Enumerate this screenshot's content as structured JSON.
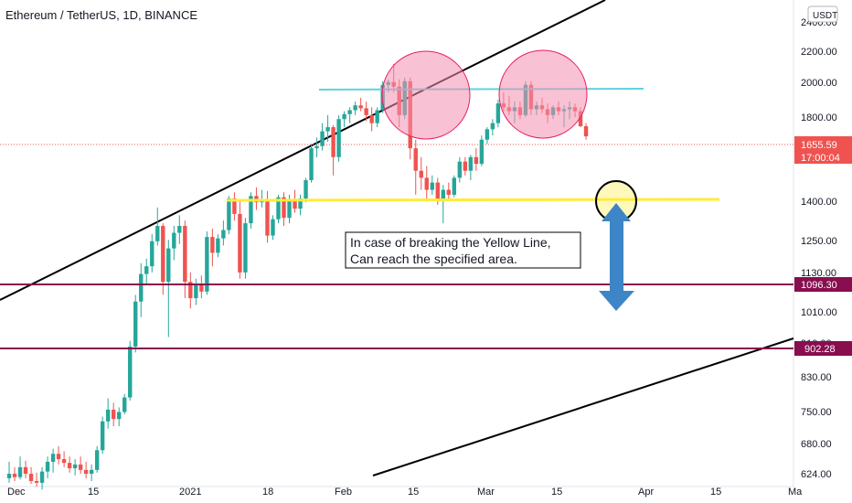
{
  "header": {
    "title": "Ethereum / TetherUS, 1D, BINANCE"
  },
  "currency_button": "USDT",
  "annotation": {
    "line1": "In case of breaking the Yellow Line,",
    "line2": "Can reach the specified area."
  },
  "last_price": {
    "value": "1655.59",
    "countdown": "17:00:04"
  },
  "chart_data": {
    "type": "candlestick",
    "title": "Ethereum / TetherUS, 1D, BINANCE",
    "y_scale": "log",
    "ylim": [
      615,
      2450
    ],
    "y_ticks": [
      "624.00",
      "680.00",
      "750.00",
      "830.00",
      "910.00",
      "1010.00",
      "1130.00",
      "1250.00",
      "1400.00",
      "1800.00",
      "2000.00",
      "2200.00",
      "2400.00"
    ],
    "x_ticks": [
      "Dec",
      "15",
      "2021",
      "18",
      "Feb",
      "15",
      "Mar",
      "15",
      "Apr",
      "15",
      "Ma"
    ],
    "horizontal_levels": [
      {
        "value": 1096.3,
        "label": "1096.30",
        "color": "#880e4f"
      },
      {
        "value": 902.28,
        "label": "902.28",
        "color": "#880e4f"
      },
      {
        "value": 1410,
        "label": "",
        "color": "#ffeb3b"
      },
      {
        "value": 1960,
        "label": "",
        "color": "#5fd3dd"
      }
    ],
    "colors": {
      "up": "#26a69a",
      "down": "#ef5350"
    },
    "candles": [
      {
        "o": 620,
        "h": 650,
        "l": 612,
        "c": 628
      },
      {
        "o": 628,
        "h": 640,
        "l": 615,
        "c": 622
      },
      {
        "o": 622,
        "h": 660,
        "l": 618,
        "c": 640
      },
      {
        "o": 640,
        "h": 652,
        "l": 620,
        "c": 628
      },
      {
        "o": 628,
        "h": 640,
        "l": 610,
        "c": 615
      },
      {
        "o": 615,
        "h": 630,
        "l": 605,
        "c": 612
      },
      {
        "o": 612,
        "h": 640,
        "l": 600,
        "c": 632
      },
      {
        "o": 632,
        "h": 660,
        "l": 620,
        "c": 650
      },
      {
        "o": 650,
        "h": 675,
        "l": 630,
        "c": 665
      },
      {
        "o": 665,
        "h": 680,
        "l": 645,
        "c": 655
      },
      {
        "o": 655,
        "h": 670,
        "l": 640,
        "c": 648
      },
      {
        "o": 648,
        "h": 660,
        "l": 630,
        "c": 638
      },
      {
        "o": 638,
        "h": 655,
        "l": 625,
        "c": 645
      },
      {
        "o": 645,
        "h": 660,
        "l": 628,
        "c": 635
      },
      {
        "o": 635,
        "h": 650,
        "l": 620,
        "c": 628
      },
      {
        "o": 628,
        "h": 645,
        "l": 615,
        "c": 635
      },
      {
        "o": 635,
        "h": 680,
        "l": 630,
        "c": 672
      },
      {
        "o": 672,
        "h": 740,
        "l": 665,
        "c": 730
      },
      {
        "o": 730,
        "h": 780,
        "l": 715,
        "c": 755
      },
      {
        "o": 755,
        "h": 770,
        "l": 720,
        "c": 735
      },
      {
        "o": 735,
        "h": 760,
        "l": 720,
        "c": 750
      },
      {
        "o": 750,
        "h": 790,
        "l": 745,
        "c": 782
      },
      {
        "o": 782,
        "h": 920,
        "l": 775,
        "c": 905
      },
      {
        "o": 905,
        "h": 1050,
        "l": 890,
        "c": 1030
      },
      {
        "o": 1030,
        "h": 1150,
        "l": 985,
        "c": 1115
      },
      {
        "o": 1115,
        "h": 1165,
        "l": 1080,
        "c": 1140
      },
      {
        "o": 1140,
        "h": 1250,
        "l": 1120,
        "c": 1225
      },
      {
        "o": 1225,
        "h": 1350,
        "l": 1210,
        "c": 1280
      },
      {
        "o": 1280,
        "h": 1290,
        "l": 1050,
        "c": 1090
      },
      {
        "o": 1090,
        "h": 1230,
        "l": 930,
        "c": 1200
      },
      {
        "o": 1200,
        "h": 1280,
        "l": 1160,
        "c": 1255
      },
      {
        "o": 1255,
        "h": 1320,
        "l": 1215,
        "c": 1280
      },
      {
        "o": 1280,
        "h": 1300,
        "l": 1040,
        "c": 1090
      },
      {
        "o": 1090,
        "h": 1120,
        "l": 1010,
        "c": 1040
      },
      {
        "o": 1040,
        "h": 1100,
        "l": 1020,
        "c": 1080
      },
      {
        "o": 1080,
        "h": 1110,
        "l": 1040,
        "c": 1060
      },
      {
        "o": 1060,
        "h": 1260,
        "l": 1050,
        "c": 1240
      },
      {
        "o": 1240,
        "h": 1270,
        "l": 1140,
        "c": 1185
      },
      {
        "o": 1185,
        "h": 1250,
        "l": 1170,
        "c": 1235
      },
      {
        "o": 1235,
        "h": 1300,
        "l": 1210,
        "c": 1265
      },
      {
        "o": 1265,
        "h": 1395,
        "l": 1250,
        "c": 1385
      },
      {
        "o": 1385,
        "h": 1410,
        "l": 1300,
        "c": 1325
      },
      {
        "o": 1325,
        "h": 1380,
        "l": 1100,
        "c": 1120
      },
      {
        "o": 1120,
        "h": 1310,
        "l": 1100,
        "c": 1290
      },
      {
        "o": 1290,
        "h": 1410,
        "l": 1270,
        "c": 1395
      },
      {
        "o": 1395,
        "h": 1430,
        "l": 1340,
        "c": 1370
      },
      {
        "o": 1370,
        "h": 1420,
        "l": 1350,
        "c": 1380
      },
      {
        "o": 1380,
        "h": 1415,
        "l": 1220,
        "c": 1245
      },
      {
        "o": 1245,
        "h": 1320,
        "l": 1230,
        "c": 1305
      },
      {
        "o": 1305,
        "h": 1400,
        "l": 1290,
        "c": 1390
      },
      {
        "o": 1390,
        "h": 1410,
        "l": 1280,
        "c": 1310
      },
      {
        "o": 1310,
        "h": 1400,
        "l": 1290,
        "c": 1380
      },
      {
        "o": 1380,
        "h": 1420,
        "l": 1330,
        "c": 1345
      },
      {
        "o": 1345,
        "h": 1400,
        "l": 1320,
        "c": 1385
      },
      {
        "o": 1385,
        "h": 1470,
        "l": 1370,
        "c": 1460
      },
      {
        "o": 1460,
        "h": 1620,
        "l": 1450,
        "c": 1600
      },
      {
        "o": 1600,
        "h": 1650,
        "l": 1560,
        "c": 1610
      },
      {
        "o": 1610,
        "h": 1720,
        "l": 1590,
        "c": 1680
      },
      {
        "o": 1680,
        "h": 1760,
        "l": 1630,
        "c": 1700
      },
      {
        "o": 1700,
        "h": 1710,
        "l": 1480,
        "c": 1560
      },
      {
        "o": 1560,
        "h": 1760,
        "l": 1540,
        "c": 1740
      },
      {
        "o": 1740,
        "h": 1780,
        "l": 1700,
        "c": 1765
      },
      {
        "o": 1765,
        "h": 1800,
        "l": 1720,
        "c": 1785
      },
      {
        "o": 1785,
        "h": 1830,
        "l": 1760,
        "c": 1810
      },
      {
        "o": 1810,
        "h": 1850,
        "l": 1780,
        "c": 1795
      },
      {
        "o": 1795,
        "h": 1830,
        "l": 1730,
        "c": 1760
      },
      {
        "o": 1760,
        "h": 1800,
        "l": 1680,
        "c": 1720
      },
      {
        "o": 1720,
        "h": 1800,
        "l": 1700,
        "c": 1785
      },
      {
        "o": 1785,
        "h": 1940,
        "l": 1770,
        "c": 1920
      },
      {
        "o": 1920,
        "h": 1950,
        "l": 1880,
        "c": 1935
      },
      {
        "o": 1935,
        "h": 2040,
        "l": 1880,
        "c": 1910
      },
      {
        "o": 1910,
        "h": 1950,
        "l": 1700,
        "c": 1760
      },
      {
        "o": 1760,
        "h": 1960,
        "l": 1740,
        "c": 1940
      },
      {
        "o": 1940,
        "h": 1960,
        "l": 1550,
        "c": 1600
      },
      {
        "o": 1600,
        "h": 1640,
        "l": 1400,
        "c": 1500
      },
      {
        "o": 1500,
        "h": 1560,
        "l": 1420,
        "c": 1470
      },
      {
        "o": 1470,
        "h": 1520,
        "l": 1380,
        "c": 1420
      },
      {
        "o": 1420,
        "h": 1480,
        "l": 1400,
        "c": 1450
      },
      {
        "o": 1450,
        "h": 1470,
        "l": 1360,
        "c": 1380
      },
      {
        "o": 1380,
        "h": 1440,
        "l": 1290,
        "c": 1420
      },
      {
        "o": 1420,
        "h": 1450,
        "l": 1380,
        "c": 1400
      },
      {
        "o": 1400,
        "h": 1480,
        "l": 1390,
        "c": 1470
      },
      {
        "o": 1470,
        "h": 1560,
        "l": 1450,
        "c": 1540
      },
      {
        "o": 1540,
        "h": 1560,
        "l": 1480,
        "c": 1500
      },
      {
        "o": 1500,
        "h": 1570,
        "l": 1460,
        "c": 1560
      },
      {
        "o": 1560,
        "h": 1600,
        "l": 1500,
        "c": 1530
      },
      {
        "o": 1530,
        "h": 1660,
        "l": 1520,
        "c": 1640
      },
      {
        "o": 1640,
        "h": 1700,
        "l": 1620,
        "c": 1690
      },
      {
        "o": 1690,
        "h": 1740,
        "l": 1660,
        "c": 1720
      },
      {
        "o": 1720,
        "h": 1840,
        "l": 1700,
        "c": 1820
      },
      {
        "o": 1820,
        "h": 1880,
        "l": 1780,
        "c": 1800
      },
      {
        "o": 1800,
        "h": 1860,
        "l": 1760,
        "c": 1780
      },
      {
        "o": 1780,
        "h": 1830,
        "l": 1720,
        "c": 1800
      },
      {
        "o": 1800,
        "h": 1830,
        "l": 1740,
        "c": 1760
      },
      {
        "o": 1760,
        "h": 1940,
        "l": 1750,
        "c": 1920
      },
      {
        "o": 1920,
        "h": 1940,
        "l": 1760,
        "c": 1790
      },
      {
        "o": 1790,
        "h": 1830,
        "l": 1760,
        "c": 1810
      },
      {
        "o": 1810,
        "h": 1850,
        "l": 1770,
        "c": 1790
      },
      {
        "o": 1790,
        "h": 1820,
        "l": 1720,
        "c": 1760
      },
      {
        "o": 1760,
        "h": 1810,
        "l": 1740,
        "c": 1800
      },
      {
        "o": 1800,
        "h": 1830,
        "l": 1760,
        "c": 1780
      },
      {
        "o": 1780,
        "h": 1810,
        "l": 1700,
        "c": 1790
      },
      {
        "o": 1790,
        "h": 1830,
        "l": 1740,
        "c": 1800
      },
      {
        "o": 1800,
        "h": 1820,
        "l": 1750,
        "c": 1780
      },
      {
        "o": 1780,
        "h": 1800,
        "l": 1700,
        "c": 1705
      },
      {
        "o": 1705,
        "h": 1720,
        "l": 1640,
        "c": 1656
      }
    ]
  }
}
